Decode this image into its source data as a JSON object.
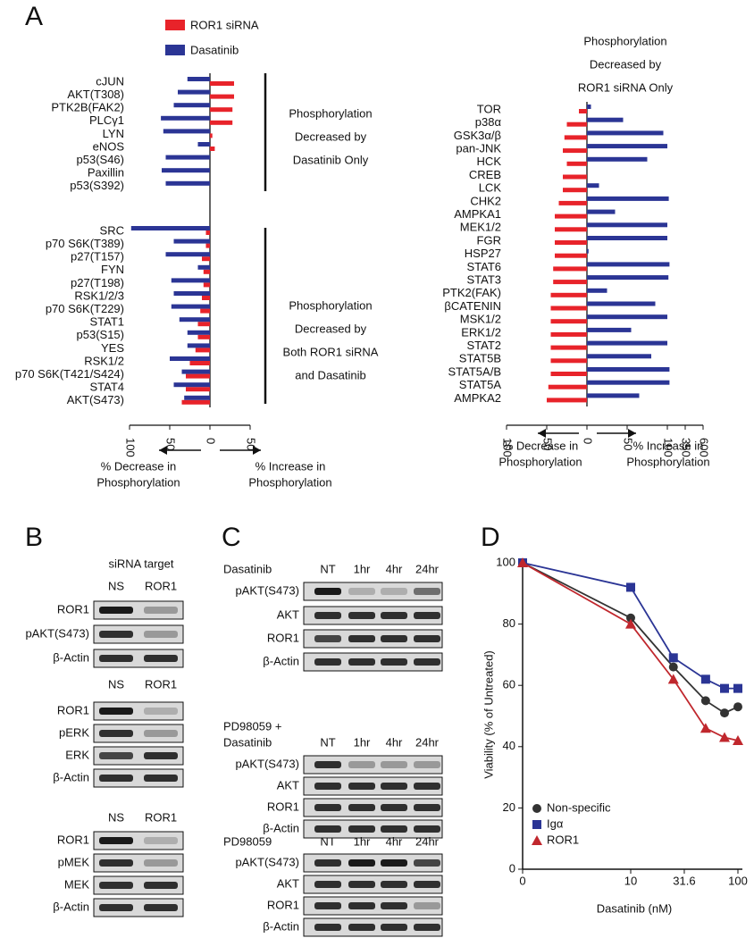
{
  "panel_labels": [
    "A",
    "B",
    "C",
    "D"
  ],
  "chart_data": [
    {
      "type": "hbar",
      "categories": [
        "cJUN",
        "AKT(T308)",
        "PTK2B(FAK2)",
        "PLCγ1",
        "LYN",
        "eNOS",
        "p53(S46)",
        "Paxillin",
        "p53(S392)",
        "SRC",
        "p70 S6K(T389)",
        "p27(T157)",
        "FYN",
        "p27(T198)",
        "RSK1/2/3",
        "p70 S6K(T229)",
        "STAT1",
        "p53(S15)",
        "YES",
        "RSK1/2",
        "p70 S6K(T421/S424)",
        "STAT4",
        "AKT(S473)"
      ],
      "series": [
        {
          "name": "ROR1 siRNA",
          "color": "#e8232a",
          "values": [
            30,
            30,
            28,
            28,
            3,
            6,
            0,
            0,
            0,
            -5,
            -5,
            -10,
            -8,
            -8,
            -10,
            -12,
            -15,
            -15,
            -18,
            -25,
            -30,
            -30,
            -35
          ]
        },
        {
          "name": "Dasatinib",
          "color": "#2b3595",
          "values": [
            -28,
            -40,
            -45,
            -61,
            -58,
            -15,
            -55,
            -60,
            -55,
            -98,
            -45,
            -55,
            -15,
            -48,
            -45,
            -48,
            -38,
            -28,
            -28,
            -50,
            -35,
            -45,
            -32
          ]
        }
      ],
      "xlim": [
        -100,
        50
      ],
      "xticks": [
        {
          "value": -100,
          "label": "100"
        },
        {
          "value": -50,
          "label": "50"
        },
        0,
        50
      ],
      "annotations": [
        [
          "Phosphorylation",
          "Decreased by",
          "Dasatinib Only"
        ],
        [
          "Phosphorylation",
          "Decreased by",
          "Both ROR1 siRNA",
          "and Dasatinib"
        ]
      ],
      "xlabel_left": [
        "% Decrease in",
        "Phosphorylation"
      ],
      "xlabel_right": [
        "% Increase in",
        "Phosphorylation"
      ]
    },
    {
      "type": "hbar",
      "title": [
        "Phosphorylation",
        "Decreased by",
        "ROR1 siRNA Only"
      ],
      "categories": [
        "TOR",
        "p38α",
        "GSK3α/β",
        "pan-JNK",
        "HCK",
        "CREB",
        "LCK",
        "CHK2",
        "AMPKA1",
        "MEK1/2",
        "FGR",
        "HSP27",
        "STAT6",
        "STAT3",
        "PTK2(FAK)",
        "βCATENIN",
        "MSK1/2",
        "ERK1/2",
        "STAT2",
        "STAT5B",
        "STAT5A/B",
        "STAT5A",
        "AMPKA2"
      ],
      "series": [
        {
          "color": "#e8232a",
          "values": [
            -10,
            -25,
            -28,
            -30,
            -25,
            -30,
            -30,
            -35,
            -40,
            -40,
            -40,
            -40,
            -42,
            -42,
            -45,
            -45,
            -45,
            -45,
            -45,
            -45,
            -45,
            -48,
            -50
          ]
        },
        {
          "color": "#2b3595",
          "values": [
            5,
            45,
            95,
            100,
            75,
            0,
            15,
            120,
            35,
            100,
            100,
            2,
            130,
            115,
            25,
            85,
            100,
            55,
            100,
            80,
            130,
            130,
            65
          ]
        }
      ],
      "xlim": [
        -100,
        600
      ],
      "xticks": [
        {
          "value": -100,
          "label": "100"
        },
        {
          "value": -50,
          "label": "50"
        },
        0,
        50,
        100,
        350,
        600
      ],
      "xlabel_left": [
        "% Decrease in",
        "Phosphorylation"
      ],
      "xlabel_right": [
        "% Increase in",
        "Phosphorylation"
      ]
    },
    {
      "type": "scatter",
      "x": [
        0,
        10,
        25,
        50,
        75,
        100
      ],
      "xscale": "log",
      "xlim": [
        0,
        100
      ],
      "xticks": [
        0,
        10,
        31.6,
        100
      ],
      "ylim": [
        0,
        100
      ],
      "yticks": [
        0,
        20,
        40,
        60,
        80,
        100
      ],
      "xlabel": "Dasatinib (nM)",
      "ylabel": "Viability (% of Untreated)",
      "series": [
        {
          "name": "Non-specific",
          "color": "#333333",
          "marker": "circle",
          "values": [
            100,
            82,
            66,
            55,
            51,
            53
          ]
        },
        {
          "name": "Igα",
          "color": "#2b3595",
          "marker": "square",
          "values": [
            100,
            92,
            69,
            62,
            59,
            59
          ]
        },
        {
          "name": "ROR1",
          "color": "#c0272d",
          "marker": "triangle",
          "values": [
            100,
            80,
            62,
            46,
            43,
            42
          ]
        }
      ]
    }
  ],
  "panel_b": {
    "header": "siRNA target",
    "groups": [
      {
        "lanes": [
          "NS",
          "ROR1"
        ],
        "rows": [
          "ROR1",
          "pAKT(S473)",
          "β-Actin"
        ]
      },
      {
        "lanes": [
          "NS",
          "ROR1"
        ],
        "rows": [
          "ROR1",
          "pERK",
          "ERK",
          "β-Actin"
        ]
      },
      {
        "lanes": [
          "NS",
          "ROR1"
        ],
        "rows": [
          "ROR1",
          "pMEK",
          "MEK",
          "β-Actin"
        ]
      }
    ]
  },
  "panel_c": {
    "groups": [
      {
        "title": [
          "Dasatinib"
        ],
        "lanes": [
          "NT",
          "1hr",
          "4hr",
          "24hr"
        ],
        "rows": [
          "pAKT(S473)",
          "AKT",
          "ROR1",
          "β-Actin"
        ]
      },
      {
        "title": [
          "PD98059 +",
          "Dasatinib"
        ],
        "lanes": [
          "NT",
          "1hr",
          "4hr",
          "24hr"
        ],
        "rows": [
          "pAKT(S473)",
          "AKT",
          "ROR1",
          "β-Actin"
        ]
      },
      {
        "title": [
          "PD98059"
        ],
        "lanes": [
          "NT",
          "1hr",
          "4hr",
          "24hr"
        ],
        "rows": [
          "pAKT(S473)",
          "AKT",
          "ROR1",
          "β-Actin"
        ]
      }
    ]
  }
}
